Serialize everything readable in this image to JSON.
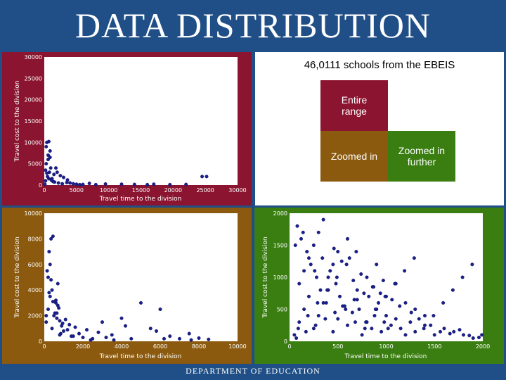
{
  "title": "DATA DISTRIBUTION",
  "footer": "DEPARTMENT OF EDUCATION",
  "legend": {
    "caption": "46,0111 schools from the EBEIS",
    "entire": "Entire range",
    "zoomed": "Zoomed in",
    "further": "Zoomed in further",
    "colors": {
      "entire": "#8b1530",
      "zoomed": "#8b5a0e",
      "further": "#3a7e12"
    }
  },
  "chart_data": [
    {
      "type": "scatter",
      "bg": "#8b1530",
      "xlabel": "Travel time to the division",
      "ylabel": "Travel cost to the division",
      "xlim": [
        0,
        30000
      ],
      "ylim": [
        0,
        30000
      ],
      "xticks": [
        "0",
        "5000",
        "10000",
        "15000",
        "20000",
        "25000",
        "30000"
      ],
      "yticks": [
        "0",
        "5000",
        "10000",
        "15000",
        "20000",
        "25000",
        "30000"
      ],
      "x": [
        200,
        500,
        800,
        1000,
        1200,
        1500,
        300,
        600,
        900,
        400,
        700,
        1100,
        1400,
        2000,
        2500,
        3000,
        3500,
        4000,
        4500,
        1800,
        600,
        300,
        900,
        1200,
        2800,
        5000,
        6000,
        7000,
        8000,
        9500,
        12000,
        14000,
        16000,
        17000,
        19500,
        22000,
        24500,
        25200,
        200,
        400,
        100,
        700,
        1600,
        2200,
        3600,
        5500
      ],
      "y": [
        1000,
        2000,
        3000,
        4000,
        1500,
        2500,
        5000,
        6000,
        8000,
        10000,
        10200,
        1200,
        800,
        3000,
        2200,
        1800,
        600,
        500,
        300,
        4000,
        7000,
        9000,
        6500,
        1000,
        300,
        200,
        150,
        400,
        100,
        250,
        200,
        150,
        100,
        200,
        100,
        150,
        2000,
        2000,
        3500,
        2800,
        200,
        1500,
        700,
        500,
        1200,
        100
      ]
    },
    {
      "type": "scatter",
      "bg": "#8b5a0e",
      "xlabel": "Travel time to the division",
      "ylabel": "Travel cost to the division",
      "xlim": [
        0,
        10000
      ],
      "ylim": [
        0,
        10000
      ],
      "xticks": [
        "0",
        "2000",
        "4000",
        "6000",
        "8000",
        "10000"
      ],
      "yticks": [
        "0",
        "2000",
        "4000",
        "6000",
        "8000",
        "10000"
      ],
      "x": [
        100,
        200,
        300,
        400,
        500,
        600,
        700,
        800,
        900,
        1000,
        150,
        250,
        350,
        450,
        550,
        650,
        750,
        850,
        950,
        1200,
        1400,
        1600,
        1800,
        2000,
        2200,
        2500,
        2800,
        3000,
        3200,
        3500,
        4000,
        4500,
        5000,
        5500,
        6000,
        6500,
        7000,
        7500,
        8000,
        8500,
        600,
        700,
        800,
        300,
        400,
        200,
        100,
        1100,
        1300,
        1500,
        2400,
        3600,
        4200,
        5800,
        6200,
        7600,
        250,
        350,
        450,
        650
      ],
      "y": [
        1500,
        2500,
        3500,
        1000,
        2000,
        3000,
        4500,
        500,
        1200,
        800,
        5500,
        7000,
        8000,
        8200,
        2200,
        1800,
        2600,
        600,
        1400,
        900,
        400,
        1100,
        600,
        300,
        900,
        200,
        700,
        1500,
        300,
        500,
        1800,
        200,
        3000,
        1000,
        2500,
        400,
        200,
        600,
        250,
        150,
        3200,
        2800,
        1600,
        6000,
        4000,
        5000,
        2000,
        1700,
        1300,
        400,
        100,
        100,
        1200,
        800,
        200,
        100,
        3800,
        4800,
        3100,
        2200
      ]
    },
    {
      "type": "scatter",
      "bg": "#3a7e12",
      "xlabel": "Travel time to the division",
      "ylabel": "Travel cost to the division",
      "xlim": [
        0,
        2000
      ],
      "ylim": [
        0,
        2000
      ],
      "xticks": [
        "0",
        "500",
        "1000",
        "1500",
        "2000"
      ],
      "yticks": [
        "0",
        "500",
        "1000",
        "1500",
        "2000"
      ],
      "x": [
        50,
        100,
        150,
        200,
        250,
        300,
        350,
        400,
        450,
        500,
        550,
        600,
        650,
        700,
        750,
        800,
        850,
        900,
        950,
        1000,
        1050,
        1100,
        1150,
        1200,
        1250,
        1300,
        1400,
        1500,
        1600,
        1700,
        1800,
        1900,
        100,
        150,
        200,
        250,
        300,
        350,
        400,
        450,
        500,
        600,
        700,
        800,
        900,
        1000,
        1100,
        1200,
        1300,
        1400,
        80,
        120,
        180,
        220,
        280,
        320,
        380,
        420,
        480,
        520,
        580,
        620,
        680,
        720,
        780,
        820,
        880,
        920,
        980,
        1020,
        60,
        140,
        260,
        340,
        460,
        540,
        660,
        740,
        860,
        940,
        1060,
        1140,
        1260,
        1340,
        1460,
        1560,
        1660,
        1760,
        1860,
        1960,
        90,
        190,
        290,
        390,
        490,
        590,
        690,
        790,
        890,
        990,
        1090,
        1190,
        1290,
        1390,
        1490,
        1590,
        1690,
        1790,
        1890,
        1990,
        70,
        170,
        270,
        370,
        470,
        570,
        670,
        770,
        870,
        970
      ],
      "y": [
        100,
        300,
        500,
        700,
        200,
        400,
        600,
        800,
        150,
        350,
        550,
        250,
        450,
        650,
        100,
        300,
        200,
        500,
        150,
        400,
        250,
        350,
        200,
        100,
        300,
        150,
        250,
        100,
        200,
        150,
        100,
        50,
        900,
        1100,
        1300,
        1500,
        1700,
        1900,
        1000,
        1200,
        1400,
        1600,
        800,
        1000,
        1200,
        700,
        900,
        600,
        500,
        400,
        1800,
        1600,
        1400,
        1200,
        1000,
        800,
        600,
        1100,
        900,
        700,
        500,
        1300,
        300,
        500,
        200,
        700,
        400,
        600,
        300,
        200,
        1500,
        1700,
        1100,
        1300,
        1450,
        1250,
        950,
        1050,
        850,
        750,
        650,
        550,
        450,
        350,
        250,
        150,
        120,
        180,
        90,
        60,
        200,
        400,
        600,
        800,
        1000,
        1200,
        1400,
        300,
        500,
        700,
        900,
        1100,
        1300,
        200,
        400,
        600,
        800,
        1000,
        1200,
        100,
        50,
        150,
        250,
        350,
        450,
        550,
        650,
        750,
        850,
        950
      ]
    }
  ]
}
